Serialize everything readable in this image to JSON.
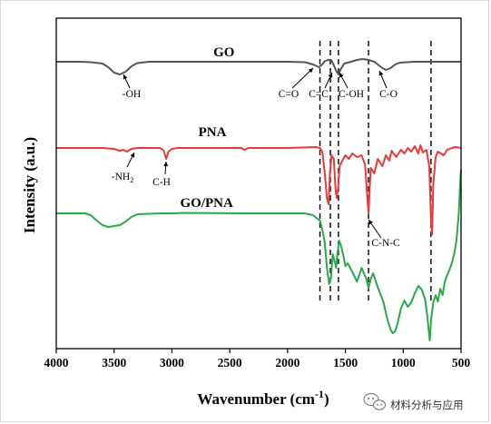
{
  "chart_data": {
    "type": "line",
    "xlabel": "Wavenumber (cm",
    "xlabel_sup": "-1",
    "xlabel_close": ")",
    "ylabel": "Intensity (a.u.)",
    "xlim": [
      4000,
      500
    ],
    "x_reversed": true,
    "xticks": [
      4000,
      3500,
      3000,
      2500,
      2000,
      1500,
      1000,
      500
    ],
    "grid": false,
    "legend": "none",
    "series": [
      {
        "name": "GO",
        "color": "#555555",
        "offset": 0,
        "points": [
          [
            4000,
            0
          ],
          [
            3800,
            0
          ],
          [
            3700,
            -0.5
          ],
          [
            3600,
            -2
          ],
          [
            3550,
            -6
          ],
          [
            3500,
            -12
          ],
          [
            3450,
            -14
          ],
          [
            3400,
            -11
          ],
          [
            3350,
            -5
          ],
          [
            3300,
            -1.5
          ],
          [
            3200,
            0
          ],
          [
            2000,
            0
          ],
          [
            1850,
            -0.5
          ],
          [
            1780,
            -3
          ],
          [
            1730,
            -6
          ],
          [
            1700,
            -3
          ],
          [
            1680,
            0.5
          ],
          [
            1650,
            2
          ],
          [
            1620,
            1.5
          ],
          [
            1600,
            -4
          ],
          [
            1580,
            -10
          ],
          [
            1560,
            -14
          ],
          [
            1540,
            -8
          ],
          [
            1510,
            -2
          ],
          [
            1450,
            0
          ],
          [
            1400,
            2
          ],
          [
            1350,
            3
          ],
          [
            1300,
            2
          ],
          [
            1250,
            0
          ],
          [
            1220,
            -3
          ],
          [
            1180,
            -7
          ],
          [
            1150,
            -9
          ],
          [
            1110,
            -7
          ],
          [
            1070,
            -3
          ],
          [
            1030,
            -1
          ],
          [
            900,
            0
          ],
          [
            500,
            0
          ]
        ]
      },
      {
        "name": "PNA",
        "color": "#e83a3a",
        "offset": 0,
        "points": [
          [
            4000,
            0
          ],
          [
            3600,
            0
          ],
          [
            3500,
            -1
          ],
          [
            3450,
            -3
          ],
          [
            3420,
            -2
          ],
          [
            3390,
            -4
          ],
          [
            3350,
            -1
          ],
          [
            3300,
            0
          ],
          [
            3100,
            0
          ],
          [
            3070,
            -3
          ],
          [
            3050,
            -12
          ],
          [
            3030,
            -4
          ],
          [
            3000,
            -1
          ],
          [
            2950,
            0
          ],
          [
            2400,
            0
          ],
          [
            2370,
            -2
          ],
          [
            2340,
            0
          ],
          [
            2000,
            0
          ],
          [
            1760,
            1
          ],
          [
            1720,
            0
          ],
          [
            1700,
            -4
          ],
          [
            1680,
            -25
          ],
          [
            1660,
            -55
          ],
          [
            1645,
            -62
          ],
          [
            1635,
            -30
          ],
          [
            1620,
            -8
          ],
          [
            1600,
            -12
          ],
          [
            1585,
            -45
          ],
          [
            1575,
            -55
          ],
          [
            1560,
            -40
          ],
          [
            1550,
            -20
          ],
          [
            1530,
            -15
          ],
          [
            1500,
            -8
          ],
          [
            1470,
            -12
          ],
          [
            1440,
            -6
          ],
          [
            1400,
            -10
          ],
          [
            1360,
            -8
          ],
          [
            1330,
            -18
          ],
          [
            1310,
            -55
          ],
          [
            1300,
            -72
          ],
          [
            1290,
            -45
          ],
          [
            1280,
            -22
          ],
          [
            1250,
            -28
          ],
          [
            1220,
            -12
          ],
          [
            1180,
            -20
          ],
          [
            1150,
            -8
          ],
          [
            1120,
            -14
          ],
          [
            1100,
            -3
          ],
          [
            1060,
            -10
          ],
          [
            1020,
            -2
          ],
          [
            990,
            -6
          ],
          [
            960,
            0
          ],
          [
            930,
            -4
          ],
          [
            900,
            2
          ],
          [
            870,
            -6
          ],
          [
            850,
            3
          ],
          [
            830,
            -5
          ],
          [
            800,
            -2
          ],
          [
            775,
            -20
          ],
          [
            760,
            -80
          ],
          [
            750,
            -95
          ],
          [
            740,
            -40
          ],
          [
            720,
            -10
          ],
          [
            700,
            -4
          ],
          [
            650,
            -8
          ],
          [
            620,
            -2
          ],
          [
            580,
            0
          ],
          [
            550,
            1
          ],
          [
            500,
            0
          ]
        ]
      },
      {
        "name": "GO/PNA",
        "color": "#2aa84a",
        "offset": 0,
        "points": [
          [
            4000,
            0
          ],
          [
            3750,
            0
          ],
          [
            3700,
            -2
          ],
          [
            3650,
            -8
          ],
          [
            3600,
            -13
          ],
          [
            3550,
            -15
          ],
          [
            3500,
            -14
          ],
          [
            3450,
            -13
          ],
          [
            3400,
            -9
          ],
          [
            3350,
            -4
          ],
          [
            3300,
            -1
          ],
          [
            3200,
            -0.5
          ],
          [
            3100,
            0
          ],
          [
            3000,
            0
          ],
          [
            2900,
            0.5
          ],
          [
            2400,
            0
          ],
          [
            2000,
            0
          ],
          [
            1850,
            0
          ],
          [
            1780,
            -2
          ],
          [
            1720,
            -8
          ],
          [
            1700,
            -18
          ],
          [
            1680,
            -30
          ],
          [
            1660,
            -60
          ],
          [
            1640,
            -78
          ],
          [
            1625,
            -72
          ],
          [
            1610,
            -45
          ],
          [
            1595,
            -52
          ],
          [
            1580,
            -60
          ],
          [
            1570,
            -45
          ],
          [
            1555,
            -30
          ],
          [
            1540,
            -35
          ],
          [
            1520,
            -45
          ],
          [
            1500,
            -58
          ],
          [
            1480,
            -55
          ],
          [
            1450,
            -62
          ],
          [
            1420,
            -70
          ],
          [
            1400,
            -75
          ],
          [
            1380,
            -68
          ],
          [
            1360,
            -60
          ],
          [
            1340,
            -66
          ],
          [
            1320,
            -72
          ],
          [
            1300,
            -82
          ],
          [
            1280,
            -72
          ],
          [
            1260,
            -66
          ],
          [
            1230,
            -78
          ],
          [
            1200,
            -88
          ],
          [
            1170,
            -98
          ],
          [
            1140,
            -115
          ],
          [
            1110,
            -128
          ],
          [
            1090,
            -132
          ],
          [
            1070,
            -130
          ],
          [
            1050,
            -122
          ],
          [
            1020,
            -105
          ],
          [
            990,
            -96
          ],
          [
            960,
            -103
          ],
          [
            930,
            -98
          ],
          [
            900,
            -88
          ],
          [
            870,
            -80
          ],
          [
            840,
            -84
          ],
          [
            810,
            -95
          ],
          [
            790,
            -115
          ],
          [
            780,
            -128
          ],
          [
            770,
            -140
          ],
          [
            760,
            -118
          ],
          [
            740,
            -98
          ],
          [
            720,
            -90
          ],
          [
            700,
            -97
          ],
          [
            680,
            -83
          ],
          [
            660,
            -90
          ],
          [
            640,
            -75
          ],
          [
            620,
            -68
          ],
          [
            600,
            -62
          ],
          [
            580,
            -55
          ],
          [
            560,
            -45
          ],
          [
            540,
            -30
          ],
          [
            520,
            0
          ],
          [
            505,
            40
          ],
          [
            500,
            48
          ]
        ]
      }
    ],
    "series_labels": [
      {
        "text": "GO",
        "x": 2550
      },
      {
        "text": "PNA",
        "x": 2650
      },
      {
        "text": "GO/PNA",
        "x": 2700
      }
    ],
    "dashed_lines": [
      1720,
      1630,
      1560,
      1300,
      760
    ],
    "annotations": [
      {
        "text": "-OH",
        "x": 3450
      },
      {
        "text": "C=O",
        "x": 1730
      },
      {
        "text": "C=C",
        "x": 1600
      },
      {
        "text": "C-OH",
        "x": 1440
      },
      {
        "text": "C-O",
        "x": 1130
      },
      {
        "text": "-NH",
        "sub": "2",
        "x": 3420
      },
      {
        "text": "C-H",
        "x": 3050
      },
      {
        "text": "C-N-C",
        "x": 1300
      }
    ]
  },
  "watermark": {
    "icon": "wechat-icon",
    "text": "材料分析与应用"
  }
}
